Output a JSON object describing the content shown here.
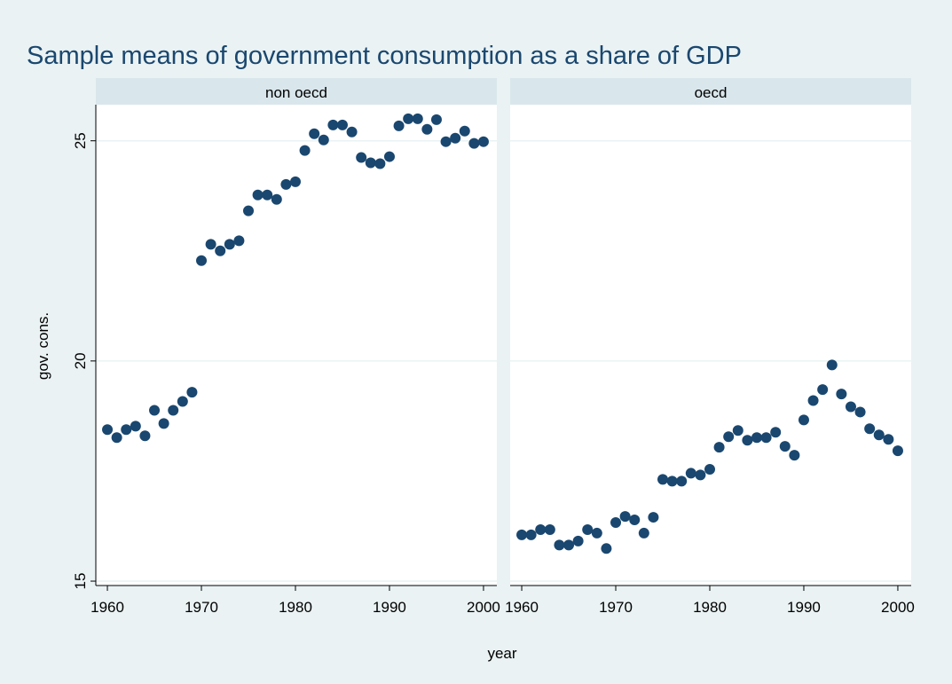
{
  "chart_data": {
    "type": "scatter",
    "title": "Sample means of government consumption as a share of GDP",
    "x_label": "year",
    "y_label": "gov. cons.",
    "x": [
      1960,
      1961,
      1962,
      1963,
      1964,
      1965,
      1966,
      1967,
      1968,
      1969,
      1970,
      1971,
      1972,
      1973,
      1974,
      1975,
      1976,
      1977,
      1978,
      1979,
      1980,
      1981,
      1982,
      1983,
      1984,
      1985,
      1986,
      1987,
      1988,
      1989,
      1990,
      1991,
      1992,
      1993,
      1994,
      1995,
      1996,
      1997,
      1998,
      1999,
      2000
    ],
    "series": [
      {
        "name": "non oecd",
        "color": "#1a476f",
        "values": [
          18.44,
          18.26,
          18.44,
          18.52,
          18.3,
          18.88,
          18.58,
          18.88,
          19.08,
          19.29,
          22.28,
          22.65,
          22.5,
          22.65,
          22.73,
          23.41,
          23.77,
          23.77,
          23.67,
          24.01,
          24.07,
          24.78,
          25.16,
          25.02,
          25.36,
          25.36,
          25.2,
          24.62,
          24.5,
          24.48,
          24.64,
          25.34,
          25.5,
          25.5,
          25.26,
          25.48,
          24.98,
          25.06,
          25.22,
          24.94,
          24.98
        ]
      },
      {
        "name": "oecd",
        "color": "#1a476f",
        "values": [
          16.05,
          16.05,
          16.17,
          16.17,
          15.82,
          15.82,
          15.91,
          16.17,
          16.09,
          15.74,
          16.33,
          16.47,
          16.39,
          16.09,
          16.45,
          17.31,
          17.27,
          17.27,
          17.45,
          17.41,
          17.54,
          18.04,
          18.28,
          18.42,
          18.2,
          18.26,
          18.26,
          18.38,
          18.06,
          17.86,
          18.66,
          19.1,
          19.35,
          19.91,
          19.25,
          18.96,
          18.84,
          18.46,
          18.32,
          18.22,
          17.96
        ]
      }
    ],
    "xlim": [
      1958.77,
      2001.42
    ],
    "xticks": [
      1960,
      1970,
      1980,
      1990,
      2000
    ],
    "ylim": [
      14.9,
      25.82
    ],
    "yticks": [
      15,
      20,
      25
    ],
    "grid": true
  }
}
